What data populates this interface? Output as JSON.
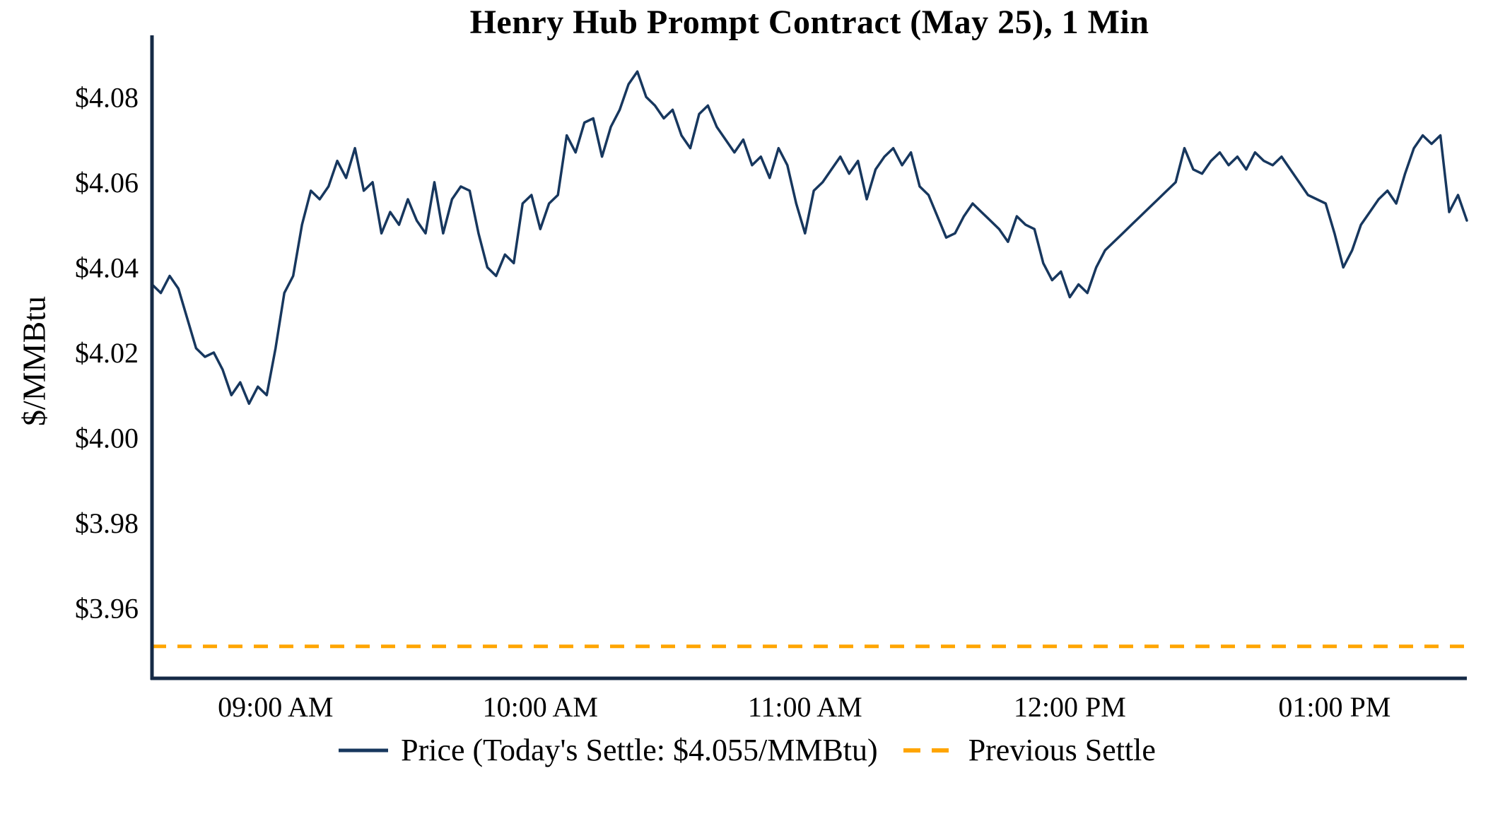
{
  "title": "Henry Hub Prompt Contract (May 25), 1 Min",
  "y_axis_label": "$/MMBtu",
  "legend": {
    "price_label": "Price (Today's Settle: $4.055/MMBtu)",
    "settle_label": "Previous Settle"
  },
  "colors": {
    "price_line": "#17375e",
    "previous_settle_line": "#FFA500",
    "axis": "#152a46",
    "text": "#000000",
    "background": "#ffffff"
  },
  "chart_data": {
    "type": "line",
    "title": "Henry Hub Prompt Contract (May 25), 1 Min",
    "xlabel": "",
    "ylabel": "$/MMBtu",
    "x_unit": "minutes since midnight (1-minute bars, sampled every 2 minutes)",
    "x_start": 512,
    "x_step": 2,
    "xlim": [
      512,
      810
    ],
    "ylim": [
      3.9435,
      4.0925
    ],
    "grid": false,
    "legend_position": "bottom-center",
    "today_settle": 4.055,
    "previous_settle": 3.951,
    "xticks": [
      {
        "value": 540,
        "label": "09:00 AM"
      },
      {
        "value": 600,
        "label": "10:00 AM"
      },
      {
        "value": 660,
        "label": "11:00 AM"
      },
      {
        "value": 720,
        "label": "12:00 PM"
      },
      {
        "value": 780,
        "label": "01:00 PM"
      }
    ],
    "yticks": [
      {
        "value": 3.96,
        "label": "$3.96"
      },
      {
        "value": 3.98,
        "label": "$3.98"
      },
      {
        "value": 4.0,
        "label": "$4.00"
      },
      {
        "value": 4.02,
        "label": "$4.02"
      },
      {
        "value": 4.04,
        "label": "$4.04"
      },
      {
        "value": 4.06,
        "label": "$4.06"
      },
      {
        "value": 4.08,
        "label": "$4.08"
      }
    ],
    "series": [
      {
        "name": "Price",
        "values": [
          4.036,
          4.034,
          4.038,
          4.035,
          4.028,
          4.021,
          4.019,
          4.02,
          4.016,
          4.01,
          4.013,
          4.008,
          4.012,
          4.01,
          4.021,
          4.034,
          4.038,
          4.05,
          4.058,
          4.056,
          4.059,
          4.065,
          4.061,
          4.068,
          4.058,
          4.06,
          4.048,
          4.053,
          4.05,
          4.056,
          4.051,
          4.048,
          4.06,
          4.048,
          4.056,
          4.059,
          4.058,
          4.048,
          4.04,
          4.038,
          4.043,
          4.041,
          4.055,
          4.057,
          4.049,
          4.055,
          4.057,
          4.071,
          4.067,
          4.074,
          4.075,
          4.066,
          4.073,
          4.077,
          4.083,
          4.086,
          4.08,
          4.078,
          4.075,
          4.077,
          4.071,
          4.068,
          4.076,
          4.078,
          4.073,
          4.07,
          4.067,
          4.07,
          4.064,
          4.066,
          4.061,
          4.068,
          4.064,
          4.055,
          4.048,
          4.058,
          4.06,
          4.063,
          4.066,
          4.062,
          4.065,
          4.056,
          4.063,
          4.066,
          4.068,
          4.064,
          4.067,
          4.059,
          4.057,
          4.052,
          4.047,
          4.048,
          4.052,
          4.055,
          4.053,
          4.051,
          4.049,
          4.046,
          4.052,
          4.05,
          4.049,
          4.041,
          4.037,
          4.039,
          4.033,
          4.036,
          4.034,
          4.04,
          4.044,
          4.046,
          4.048,
          4.05,
          4.052,
          4.054,
          4.056,
          4.058,
          4.06,
          4.068,
          4.063,
          4.062,
          4.065,
          4.067,
          4.064,
          4.066,
          4.063,
          4.067,
          4.065,
          4.064,
          4.066,
          4.063,
          4.06,
          4.057,
          4.056,
          4.055,
          4.048,
          4.04,
          4.044,
          4.05,
          4.053,
          4.056,
          4.058,
          4.055,
          4.062,
          4.068,
          4.071,
          4.069,
          4.071,
          4.053,
          4.057,
          4.051
        ]
      }
    ]
  }
}
